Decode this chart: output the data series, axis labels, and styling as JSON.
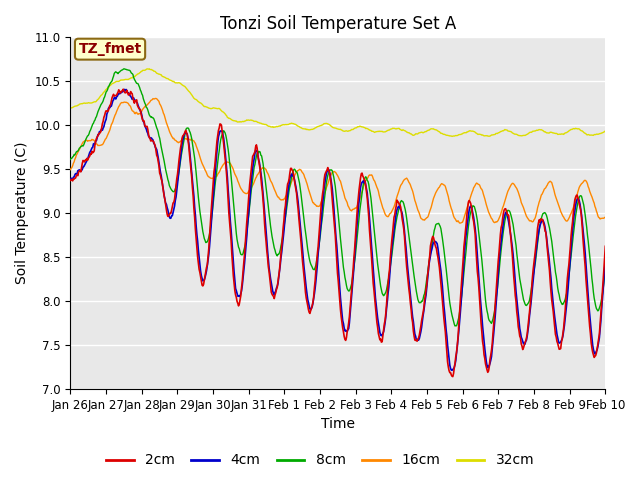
{
  "title": "Tonzi Soil Temperature Set A",
  "xlabel": "Time",
  "ylabel": "Soil Temperature (C)",
  "ylim": [
    7.0,
    11.0
  ],
  "yticks": [
    7.0,
    7.5,
    8.0,
    8.5,
    9.0,
    9.5,
    10.0,
    10.5,
    11.0
  ],
  "xtick_labels": [
    "Jan 26",
    "Jan 27",
    "Jan 28",
    "Jan 29",
    "Jan 30",
    "Jan 31",
    "Feb 1",
    "Feb 2",
    "Feb 3",
    "Feb 4",
    "Feb 5",
    "Feb 6",
    "Feb 7",
    "Feb 8",
    "Feb 9",
    "Feb 10"
  ],
  "legend_label": "TZ_fmet",
  "series_labels": [
    "2cm",
    "4cm",
    "8cm",
    "16cm",
    "32cm"
  ],
  "series_colors": [
    "#dd0000",
    "#0000cc",
    "#00aa00",
    "#ff8800",
    "#dddd00"
  ],
  "background_color": "#e8e8e8",
  "n_points": 720,
  "title_fontsize": 12,
  "axis_fontsize": 10,
  "tick_fontsize": 8.5,
  "legend_fontsize": 10
}
